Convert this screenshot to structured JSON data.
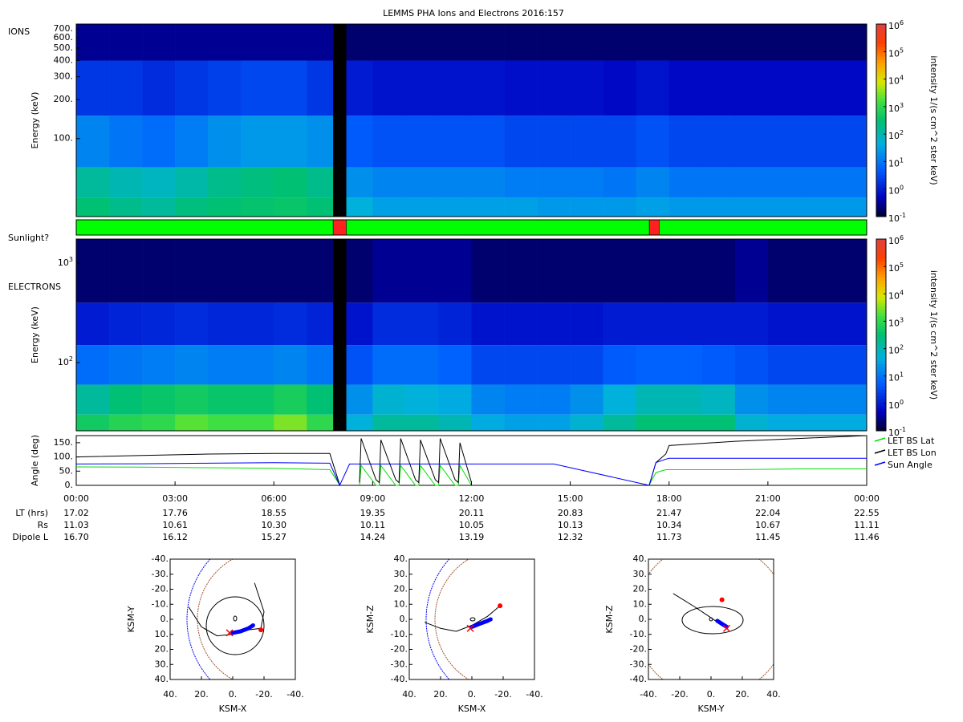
{
  "chart_data": [
    {
      "type": "heatmap",
      "title": "LEMMS PHA Ions and Electrons  2016:157",
      "panel_label": "IONS",
      "y_label": "Energy (keV)",
      "log_y": true,
      "xlim": [
        0,
        24
      ],
      "ylim": [
        25,
        765
      ],
      "yticks": [
        {
          "value": 100,
          "label": "100."
        },
        {
          "value": 200,
          "label": "200."
        },
        {
          "value": 300,
          "label": "300."
        },
        {
          "value": 400,
          "label": "400."
        },
        {
          "value": 500,
          "label": "500."
        },
        {
          "value": 600,
          "label": "600."
        },
        {
          "value": 700,
          "label": "700."
        }
      ],
      "x_edges": [
        0,
        1,
        2,
        3,
        4,
        5,
        6,
        7,
        8,
        9,
        10,
        11,
        12,
        13,
        14,
        15,
        16,
        17,
        18,
        19,
        20,
        21,
        22,
        23,
        24
      ],
      "y_edges": [
        25,
        35,
        60,
        150,
        400,
        765
      ],
      "values": [
        [
          300,
          200,
          150,
          250,
          300,
          350,
          400,
          300,
          50,
          30,
          30,
          30,
          30,
          30,
          25,
          25,
          25,
          30,
          25,
          25,
          25,
          25,
          25,
          25
        ],
        [
          150,
          100,
          80,
          120,
          200,
          250,
          300,
          200,
          20,
          15,
          15,
          15,
          15,
          12,
          12,
          12,
          10,
          15,
          10,
          10,
          10,
          10,
          10,
          10
        ],
        [
          15,
          10,
          8,
          12,
          20,
          25,
          25,
          20,
          5,
          4,
          4,
          4,
          4,
          3,
          3,
          3,
          3,
          4,
          3,
          3,
          3,
          3,
          3,
          3
        ],
        [
          2,
          2,
          1.5,
          2,
          2.5,
          3,
          3,
          2,
          1,
          0.8,
          0.8,
          0.8,
          0.8,
          0.7,
          0.7,
          0.7,
          0.6,
          0.8,
          0.6,
          0.6,
          0.6,
          0.6,
          0.6,
          0.6
        ],
        [
          0.3,
          0.3,
          0.3,
          0.3,
          0.3,
          0.3,
          0.3,
          0.3,
          0.2,
          0.2,
          0.2,
          0.2,
          0.2,
          0.2,
          0.2,
          0.2,
          0.2,
          0.2,
          0.2,
          0.2,
          0.2,
          0.2,
          0.2,
          0.2
        ]
      ],
      "data_gap": [
        7.8,
        8.2
      ],
      "colorbar": {
        "label": "intensity 1/(s cm^2 ster keV)",
        "lim": [
          0.1,
          1000000
        ],
        "ticks": [
          {
            "value": 0.1,
            "label": "10",
            "exponent": "-1"
          },
          {
            "value": 1,
            "label": "10",
            "exponent": "0"
          },
          {
            "value": 10,
            "label": "10",
            "exponent": "1"
          },
          {
            "value": 100,
            "label": "10",
            "exponent": "2"
          },
          {
            "value": 1000,
            "label": "10",
            "exponent": "3"
          },
          {
            "value": 10000,
            "label": "10",
            "exponent": "4"
          },
          {
            "value": 100000,
            "label": "10",
            "exponent": "5"
          },
          {
            "value": 1000000,
            "label": "10",
            "exponent": "6"
          }
        ]
      }
    },
    {
      "type": "timeline",
      "label": "Sunlight?",
      "xlim": [
        0,
        24
      ],
      "segments": [
        {
          "start": 0,
          "end": 7.8,
          "color": "#00ff00"
        },
        {
          "start": 7.8,
          "end": 8.2,
          "color": "#ff2020"
        },
        {
          "start": 8.2,
          "end": 17.4,
          "color": "#00ff00"
        },
        {
          "start": 17.4,
          "end": 17.7,
          "color": "#ff2020"
        },
        {
          "start": 17.7,
          "end": 24,
          "color": "#00ff00"
        }
      ]
    },
    {
      "type": "heatmap",
      "panel_label": "ELECTRONS",
      "y_label": "Energy (keV)",
      "log_y": true,
      "xlim": [
        0,
        24
      ],
      "ylim": [
        20.6,
        1746
      ],
      "yticks": [
        {
          "value": 100,
          "label": "10",
          "exponent": "2"
        },
        {
          "value": 1000,
          "label": "10",
          "exponent": "3"
        }
      ],
      "x_edges": [
        0,
        1,
        2,
        3,
        4,
        5,
        6,
        7,
        8,
        9,
        10,
        11,
        12,
        13,
        14,
        15,
        16,
        17,
        18,
        19,
        20,
        21,
        22,
        23,
        24
      ],
      "y_edges": [
        20.6,
        30,
        60,
        150,
        400,
        1746
      ],
      "values": [
        [
          500,
          800,
          1000,
          2000,
          1500,
          1500,
          3000,
          1000,
          50,
          150,
          150,
          100,
          40,
          30,
          30,
          60,
          150,
          300,
          300,
          300,
          60,
          40,
          40,
          40
        ],
        [
          150,
          300,
          400,
          500,
          400,
          400,
          600,
          300,
          20,
          60,
          50,
          40,
          15,
          12,
          12,
          20,
          50,
          100,
          100,
          80,
          20,
          15,
          15,
          15
        ],
        [
          8,
          10,
          12,
          15,
          12,
          12,
          15,
          10,
          4,
          8,
          8,
          6,
          3,
          3,
          3,
          3,
          5,
          6,
          6,
          5,
          4,
          3,
          3,
          3
        ],
        [
          1,
          1.2,
          1.3,
          1.5,
          1.3,
          1.3,
          1.5,
          1.2,
          0.8,
          1.5,
          1.5,
          1.2,
          0.8,
          0.8,
          0.8,
          0.8,
          1,
          1,
          1,
          1,
          1,
          0.8,
          0.8,
          0.8
        ],
        [
          0.2,
          0.2,
          0.2,
          0.2,
          0.2,
          0.2,
          0.2,
          0.2,
          0.2,
          0.3,
          0.3,
          0.3,
          0.2,
          0.2,
          0.2,
          0.2,
          0.2,
          0.2,
          0.2,
          0.2,
          0.3,
          0.2,
          0.2,
          0.2
        ]
      ],
      "data_gap": [
        7.8,
        8.2
      ],
      "colorbar": {
        "label": "intensity 1/(s cm^2 ster keV)",
        "lim": [
          0.1,
          1000000
        ],
        "ticks": [
          {
            "value": 0.1,
            "label": "10",
            "exponent": "-1"
          },
          {
            "value": 1,
            "label": "10",
            "exponent": "0"
          },
          {
            "value": 10,
            "label": "10",
            "exponent": "1"
          },
          {
            "value": 100,
            "label": "10",
            "exponent": "2"
          },
          {
            "value": 1000,
            "label": "10",
            "exponent": "3"
          },
          {
            "value": 10000,
            "label": "10",
            "exponent": "4"
          },
          {
            "value": 100000,
            "label": "10",
            "exponent": "5"
          },
          {
            "value": 1000000,
            "label": "10",
            "exponent": "6"
          }
        ]
      }
    },
    {
      "type": "line",
      "y_label": "Angle (deg)",
      "xlim": [
        0,
        24
      ],
      "ylim": [
        0,
        175
      ],
      "yticks": [
        {
          "value": 0,
          "label": "0."
        },
        {
          "value": 50,
          "label": "50."
        },
        {
          "value": 100,
          "label": "100."
        },
        {
          "value": 150,
          "label": "150."
        }
      ],
      "xticks": [
        {
          "value": 0,
          "label": "00:00"
        },
        {
          "value": 3,
          "label": "03:00"
        },
        {
          "value": 6,
          "label": "06:00"
        },
        {
          "value": 9,
          "label": "09:00"
        },
        {
          "value": 12,
          "label": "12:00"
        },
        {
          "value": 15,
          "label": "15:00"
        },
        {
          "value": 18,
          "label": "18:00"
        },
        {
          "value": 21,
          "label": "21:00"
        },
        {
          "value": 24,
          "label": "00:00"
        }
      ],
      "x": [
        0,
        2,
        4,
        6,
        7.7,
        8.0,
        8.3,
        8.6,
        8.65,
        9.1,
        9.2,
        9.25,
        9.7,
        9.8,
        9.85,
        10.3,
        10.4,
        10.45,
        10.9,
        11.0,
        11.05,
        11.5,
        11.6,
        11.65,
        12.0,
        14.5,
        17.4,
        17.6,
        17.9,
        18,
        20,
        22,
        24
      ],
      "series": [
        {
          "name": "LET BS Lat",
          "color": "#00e000",
          "values": [
            65,
            64,
            62,
            60,
            55,
            2,
            null,
            0,
            70,
            0,
            0,
            70,
            0,
            0,
            70,
            0,
            0,
            70,
            0,
            0,
            70,
            0,
            0,
            70,
            0,
            null,
            2,
            45,
            55,
            55,
            55,
            58,
            58
          ]
        },
        {
          "name": "LET BS Lon",
          "color": "#000000",
          "values": [
            100,
            105,
            110,
            112,
            112,
            2,
            null,
            10,
            165,
            20,
            10,
            160,
            20,
            10,
            165,
            20,
            10,
            160,
            20,
            10,
            165,
            20,
            10,
            150,
            10,
            null,
            2,
            80,
            110,
            140,
            155,
            165,
            175
          ]
        },
        {
          "name": "Sun Angle",
          "color": "#0000ff",
          "values": [
            75,
            76,
            78,
            80,
            78,
            0,
            75,
            75,
            75,
            75,
            75,
            75,
            75,
            75,
            75,
            75,
            75,
            75,
            75,
            75,
            75,
            75,
            75,
            75,
            75,
            75,
            0,
            80,
            92,
            95,
            95,
            95,
            95
          ]
        }
      ],
      "rows": [
        {
          "label": "LT (hrs)",
          "values": [
            "17.02",
            "17.76",
            "18.55",
            "19.35",
            "20.11",
            "20.83",
            "21.47",
            "22.04",
            "22.55"
          ]
        },
        {
          "label": "Rs",
          "values": [
            "11.03",
            "10.61",
            "10.30",
            "10.11",
            "10.05",
            "10.13",
            "10.34",
            "10.67",
            "11.11"
          ]
        },
        {
          "label": "Dipole L",
          "values": [
            "16.70",
            "16.12",
            "15.27",
            "14.24",
            "13.19",
            "12.32",
            "11.73",
            "11.45",
            "11.46"
          ]
        }
      ]
    },
    {
      "type": "orbit",
      "x_label": "KSM-X",
      "y_label": "KSM-Y",
      "xlim": [
        40,
        -40
      ],
      "ylim": [
        40,
        -40
      ],
      "xticks": [
        {
          "value": 40,
          "label": "40."
        },
        {
          "value": 20,
          "label": "20."
        },
        {
          "value": 0,
          "label": "0."
        },
        {
          "value": -20,
          "label": "-20."
        },
        {
          "value": -40,
          "label": "-40."
        }
      ],
      "yticks": [
        {
          "value": -40,
          "label": "-40."
        },
        {
          "value": -30,
          "label": "-30."
        },
        {
          "value": -20,
          "label": "-20."
        },
        {
          "value": -10,
          "label": "-10."
        },
        {
          "value": 0,
          "label": "0."
        },
        {
          "value": 10,
          "label": "10."
        },
        {
          "value": 20,
          "label": "20."
        },
        {
          "value": 30,
          "label": "30."
        },
        {
          "value": 40,
          "label": "40."
        }
      ],
      "series": [
        {
          "marker": "line",
          "color": "#000000",
          "x": [
            28,
            20,
            10,
            0,
            -10,
            -18,
            -20,
            -14
          ],
          "y": [
            -8,
            5,
            11,
            10,
            7,
            6,
            -5,
            -24
          ]
        },
        {
          "marker": "thick",
          "color": "#0000ff",
          "x": [
            0,
            -5,
            -10,
            -13
          ],
          "y": [
            9,
            8,
            6,
            4
          ]
        },
        {
          "marker": "dot",
          "color": "#ff0000",
          "x": [
            -18
          ],
          "y": [
            7
          ]
        },
        {
          "marker": "cross",
          "color": "#ff0000",
          "x": [
            2
          ],
          "y": [
            9
          ]
        }
      ]
    },
    {
      "type": "orbit",
      "x_label": "KSM-X",
      "y_label": "KSM-Z",
      "xlim": [
        40,
        -40
      ],
      "ylim": [
        -40,
        40
      ],
      "xticks": [
        {
          "value": 40,
          "label": "40."
        },
        {
          "value": 20,
          "label": "20."
        },
        {
          "value": 0,
          "label": "0."
        },
        {
          "value": -20,
          "label": "-20."
        },
        {
          "value": -40,
          "label": "-40."
        }
      ],
      "yticks": [
        {
          "value": -40,
          "label": "-40."
        },
        {
          "value": -30,
          "label": "-30."
        },
        {
          "value": -20,
          "label": "-20."
        },
        {
          "value": -10,
          "label": "-10."
        },
        {
          "value": 0,
          "label": "0."
        },
        {
          "value": 10,
          "label": "10."
        },
        {
          "value": 20,
          "label": "20."
        },
        {
          "value": 30,
          "label": "30."
        },
        {
          "value": 40,
          "label": "40."
        }
      ],
      "series": [
        {
          "marker": "line",
          "color": "#000000",
          "x": [
            30,
            20,
            10,
            0,
            -10,
            -18
          ],
          "y": [
            -2,
            -6,
            -8,
            -4,
            2,
            9
          ]
        },
        {
          "marker": "thick",
          "color": "#0000ff",
          "x": [
            0,
            -5,
            -10,
            -12
          ],
          "y": [
            -5,
            -3,
            -1,
            0
          ]
        },
        {
          "marker": "dot",
          "color": "#ff0000",
          "x": [
            -18
          ],
          "y": [
            9
          ]
        },
        {
          "marker": "cross",
          "color": "#ff0000",
          "x": [
            1
          ],
          "y": [
            -6
          ]
        }
      ]
    },
    {
      "type": "orbit",
      "x_label": "KSM-Y",
      "y_label": "KSM-Z",
      "xlim": [
        -40,
        40
      ],
      "ylim": [
        -40,
        40
      ],
      "xticks": [
        {
          "value": -40,
          "label": "-40."
        },
        {
          "value": -20,
          "label": "-20."
        },
        {
          "value": 0,
          "label": "0."
        },
        {
          "value": 20,
          "label": "20."
        },
        {
          "value": 40,
          "label": "40."
        }
      ],
      "yticks": [
        {
          "value": -40,
          "label": "-40."
        },
        {
          "value": -30,
          "label": "-30."
        },
        {
          "value": -20,
          "label": "-20."
        },
        {
          "value": -10,
          "label": "-10."
        },
        {
          "value": 0,
          "label": "0."
        },
        {
          "value": 10,
          "label": "10."
        },
        {
          "value": 20,
          "label": "20."
        },
        {
          "value": 30,
          "label": "30."
        },
        {
          "value": 40,
          "label": "40."
        }
      ],
      "series": [
        {
          "marker": "line",
          "color": "#000000",
          "x": [
            -24,
            -10,
            0,
            10
          ],
          "y": [
            17,
            8,
            1,
            -6
          ]
        },
        {
          "marker": "thick",
          "color": "#0000ff",
          "x": [
            4,
            7,
            10
          ],
          "y": [
            -1,
            -3,
            -5
          ]
        },
        {
          "marker": "dot",
          "color": "#ff0000",
          "x": [
            7
          ],
          "y": [
            13
          ]
        },
        {
          "marker": "cross",
          "color": "#ff0000",
          "x": [
            10
          ],
          "y": [
            -6
          ]
        }
      ]
    }
  ]
}
